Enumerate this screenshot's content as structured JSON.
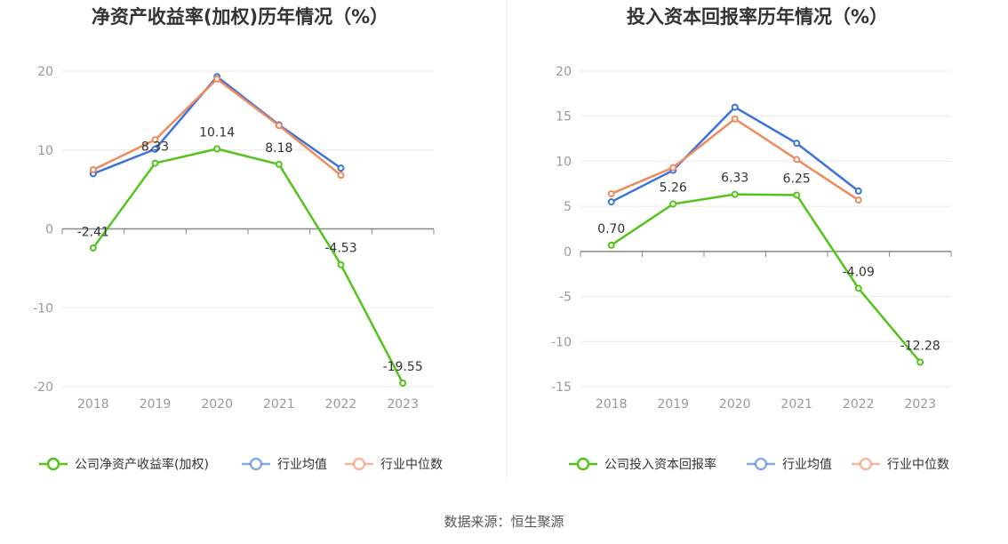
{
  "source": "数据来源：恒生聚源",
  "chart_data": [
    {
      "type": "line",
      "title": "净资产收益率(加权)历年情况（%）",
      "categories": [
        "2018",
        "2019",
        "2020",
        "2021",
        "2022",
        "2023"
      ],
      "ylim": [
        -20,
        20
      ],
      "yticks": [
        -20,
        -10,
        0,
        10,
        20
      ],
      "grid": true,
      "legend_position": "bottom",
      "series": [
        {
          "name": "公司净资产收益率(加权)",
          "color": "#52c41a",
          "values": [
            -2.41,
            8.33,
            10.14,
            8.18,
            -4.53,
            -19.55
          ],
          "labels": [
            "-2.41",
            "8.33",
            "10.14",
            "8.18",
            "-4.53",
            "-19.55"
          ]
        },
        {
          "name": "行业均值",
          "color": "#3b73db",
          "values": [
            7.0,
            10.1,
            19.3,
            13.2,
            7.7,
            null
          ]
        },
        {
          "name": "行业中位数",
          "color": "#f08a5d",
          "values": [
            7.5,
            11.3,
            19.0,
            13.1,
            6.8,
            null
          ]
        }
      ]
    },
    {
      "type": "line",
      "title": "投入资本回报率历年情况（%）",
      "categories": [
        "2018",
        "2019",
        "2020",
        "2021",
        "2022",
        "2023"
      ],
      "ylim": [
        -15,
        20
      ],
      "yticks": [
        -15,
        -10,
        -5,
        0,
        5,
        10,
        15,
        20
      ],
      "grid": true,
      "legend_position": "bottom",
      "series": [
        {
          "name": "公司投入资本回报率",
          "color": "#52c41a",
          "values": [
            0.7,
            5.26,
            6.33,
            6.25,
            -4.09,
            -12.28
          ],
          "labels": [
            "0.70",
            "5.26",
            "6.33",
            "6.25",
            "-4.09",
            "-12.28"
          ]
        },
        {
          "name": "行业均值",
          "color": "#3b73db",
          "values": [
            5.5,
            9.0,
            16.0,
            12.0,
            6.7,
            null
          ]
        },
        {
          "name": "行业中位数",
          "color": "#f08a5d",
          "values": [
            6.4,
            9.3,
            14.7,
            10.2,
            5.7,
            null
          ]
        }
      ]
    }
  ]
}
